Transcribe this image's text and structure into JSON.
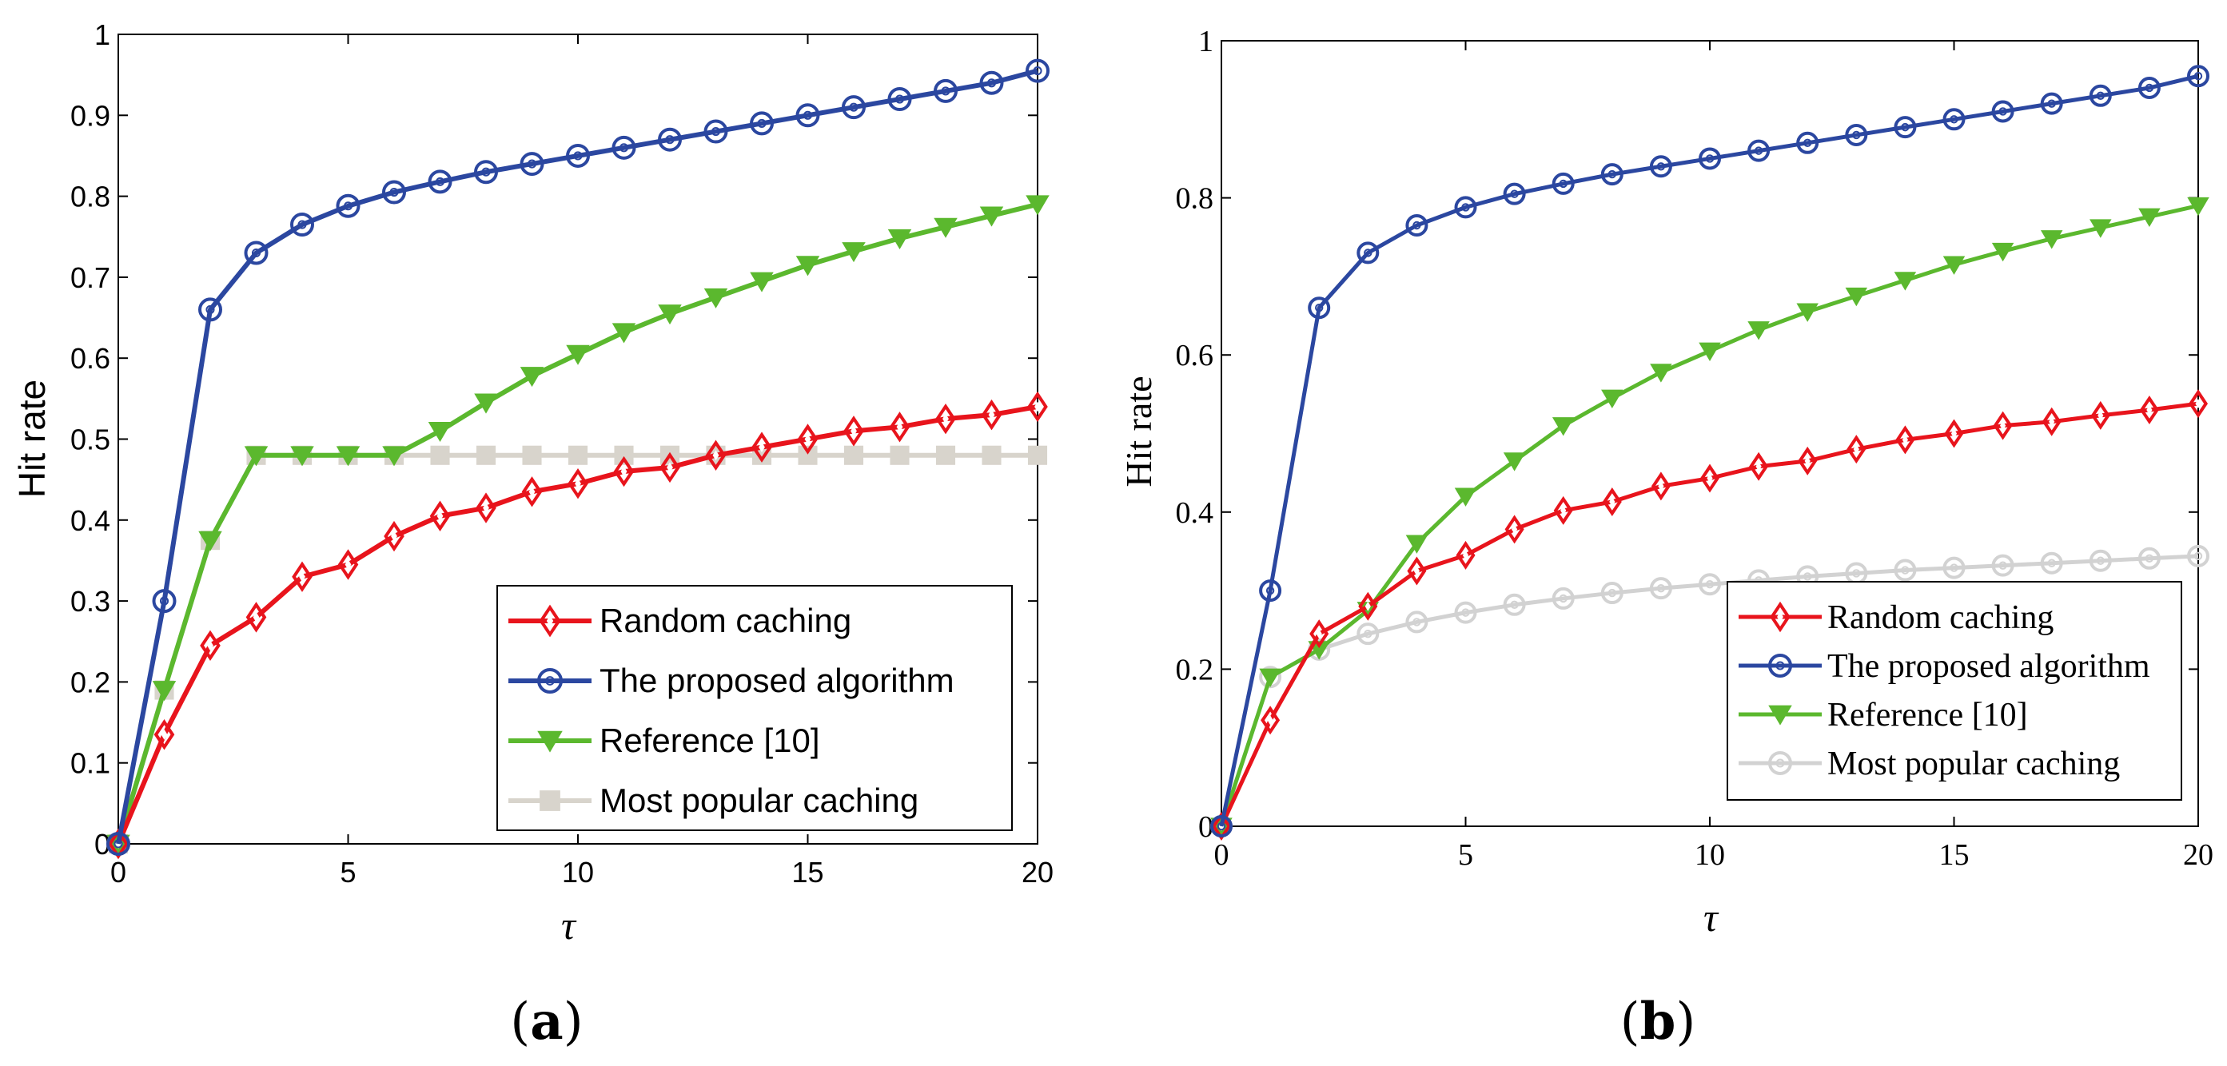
{
  "chart_data": [
    {
      "panel": "(a)",
      "panel_letter": "a",
      "type": "line",
      "xlabel": "τ",
      "ylabel": "Hit rate",
      "xlim": [
        0,
        20
      ],
      "ylim": [
        0,
        1
      ],
      "x_ticks": [
        "0",
        "5",
        "10",
        "15",
        "20"
      ],
      "y_ticks": [
        "0",
        "0.1",
        "0.2",
        "0.3",
        "0.4",
        "0.5",
        "0.6",
        "0.7",
        "0.8",
        "0.9",
        "1"
      ],
      "legend_position": "bottom-right",
      "x": [
        0,
        1,
        2,
        3,
        4,
        5,
        6,
        7,
        8,
        9,
        10,
        11,
        12,
        13,
        14,
        15,
        16,
        17,
        18,
        19,
        20
      ],
      "series": [
        {
          "name": "Random caching",
          "color": "#e8141c",
          "marker": "diamond",
          "values": [
            0,
            0.135,
            0.245,
            0.28,
            0.33,
            0.345,
            0.38,
            0.405,
            0.415,
            0.435,
            0.445,
            0.46,
            0.465,
            0.48,
            0.49,
            0.5,
            0.51,
            0.515,
            0.525,
            0.53,
            0.54
          ]
        },
        {
          "name": "The proposed algorithm",
          "color": "#2b47a0",
          "marker": "circle",
          "values": [
            0,
            0.3,
            0.66,
            0.73,
            0.765,
            0.788,
            0.805,
            0.818,
            0.83,
            0.84,
            0.85,
            0.86,
            0.87,
            0.88,
            0.89,
            0.9,
            0.91,
            0.92,
            0.93,
            0.94,
            0.955
          ]
        },
        {
          "name": "Reference [10]",
          "color": "#5bb82e",
          "marker": "triangle-down",
          "values": [
            0,
            0.19,
            0.375,
            0.48,
            0.48,
            0.48,
            0.48,
            0.51,
            0.545,
            0.578,
            0.605,
            0.632,
            0.655,
            0.675,
            0.695,
            0.715,
            0.732,
            0.748,
            0.762,
            0.776,
            0.79
          ]
        },
        {
          "name": "Most popular caching",
          "color": "#d8d4cc",
          "marker": "square",
          "values": [
            0,
            0.19,
            0.375,
            0.48,
            0.48,
            0.48,
            0.48,
            0.48,
            0.48,
            0.48,
            0.48,
            0.48,
            0.48,
            0.48,
            0.48,
            0.48,
            0.48,
            0.48,
            0.48,
            0.48,
            0.48
          ]
        }
      ]
    },
    {
      "panel": "(b)",
      "panel_letter": "b",
      "type": "line",
      "xlabel": "τ",
      "ylabel": "Hit rate",
      "xlim": [
        0,
        20
      ],
      "ylim": [
        0,
        1
      ],
      "x_ticks": [
        "0",
        "5",
        "10",
        "15",
        "20"
      ],
      "y_ticks": [
        "0",
        "0.2",
        "0.4",
        "0.6",
        "0.8",
        "1"
      ],
      "legend_position": "bottom-right",
      "x": [
        0,
        1,
        2,
        3,
        4,
        5,
        6,
        7,
        8,
        9,
        10,
        11,
        12,
        13,
        14,
        15,
        16,
        17,
        18,
        19,
        20
      ],
      "series": [
        {
          "name": "Random caching",
          "color": "#e8141c",
          "marker": "diamond",
          "values": [
            0,
            0.135,
            0.245,
            0.28,
            0.325,
            0.345,
            0.378,
            0.402,
            0.413,
            0.433,
            0.443,
            0.458,
            0.465,
            0.48,
            0.492,
            0.5,
            0.51,
            0.515,
            0.523,
            0.53,
            0.538
          ]
        },
        {
          "name": "The proposed algorithm",
          "color": "#2b47a0",
          "marker": "circle",
          "values": [
            0,
            0.3,
            0.66,
            0.73,
            0.765,
            0.788,
            0.805,
            0.818,
            0.83,
            0.84,
            0.85,
            0.86,
            0.87,
            0.88,
            0.89,
            0.9,
            0.91,
            0.92,
            0.93,
            0.94,
            0.955
          ]
        },
        {
          "name": "Reference [10]",
          "color": "#5bb82e",
          "marker": "triangle-down",
          "values": [
            0,
            0.19,
            0.225,
            0.275,
            0.36,
            0.42,
            0.465,
            0.51,
            0.545,
            0.578,
            0.605,
            0.632,
            0.655,
            0.675,
            0.695,
            0.715,
            0.732,
            0.748,
            0.762,
            0.776,
            0.79
          ]
        },
        {
          "name": "Most popular caching",
          "color": "#d2d2d2",
          "marker": "circle",
          "values": [
            0,
            0.19,
            0.225,
            0.245,
            0.26,
            0.272,
            0.282,
            0.29,
            0.297,
            0.303,
            0.308,
            0.313,
            0.318,
            0.322,
            0.326,
            0.329,
            0.332,
            0.335,
            0.338,
            0.341,
            0.344
          ]
        }
      ]
    }
  ]
}
